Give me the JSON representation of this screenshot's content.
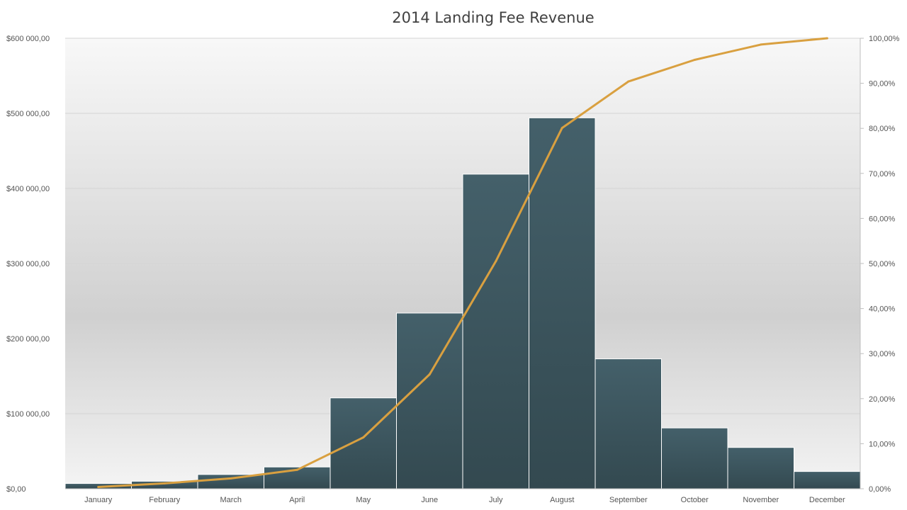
{
  "chart_data": {
    "type": "bar",
    "title": "2014 Landing Fee Revenue",
    "categories": [
      "January",
      "February",
      "March",
      "April",
      "May",
      "June",
      "July",
      "August",
      "September",
      "October",
      "November",
      "December"
    ],
    "series": [
      {
        "type": "bar",
        "axis": "left",
        "values": [
          7000,
          10000,
          19000,
          29000,
          121000,
          234000,
          419000,
          494000,
          173000,
          81000,
          55000,
          23000
        ]
      },
      {
        "type": "line",
        "axis": "right",
        "values": [
          0.4,
          1.2,
          2.3,
          4.2,
          11.4,
          25.4,
          50.5,
          80.1,
          90.4,
          95.2,
          98.6,
          100.0
        ]
      }
    ],
    "yleft": {
      "ylim": [
        0,
        600000
      ],
      "ticks": [
        0,
        100000,
        200000,
        300000,
        400000,
        500000,
        600000
      ],
      "tick_labels": [
        "$0,00",
        "$100 000,00",
        "$200 000,00",
        "$300 000,00",
        "$400 000,00",
        "$500 000,00",
        "$600 000,00"
      ]
    },
    "yright": {
      "ylim": [
        0,
        100
      ],
      "ticks": [
        0,
        10,
        20,
        30,
        40,
        50,
        60,
        70,
        80,
        90,
        100
      ],
      "tick_labels": [
        "0,00%",
        "10,00%",
        "20,00%",
        "30,00%",
        "40,00%",
        "50,00%",
        "60,00%",
        "70,00%",
        "80,00%",
        "90,00%",
        "100,00%"
      ]
    },
    "grid": true,
    "legend": "none",
    "colors": {
      "bar": "#3b555d",
      "bar_top": "#44606a",
      "line": "#d9a040",
      "grid": "#d4d4d4",
      "plot_bg_edge": "#f7f7f7",
      "plot_bg_mid": "#d2d2d2"
    }
  }
}
